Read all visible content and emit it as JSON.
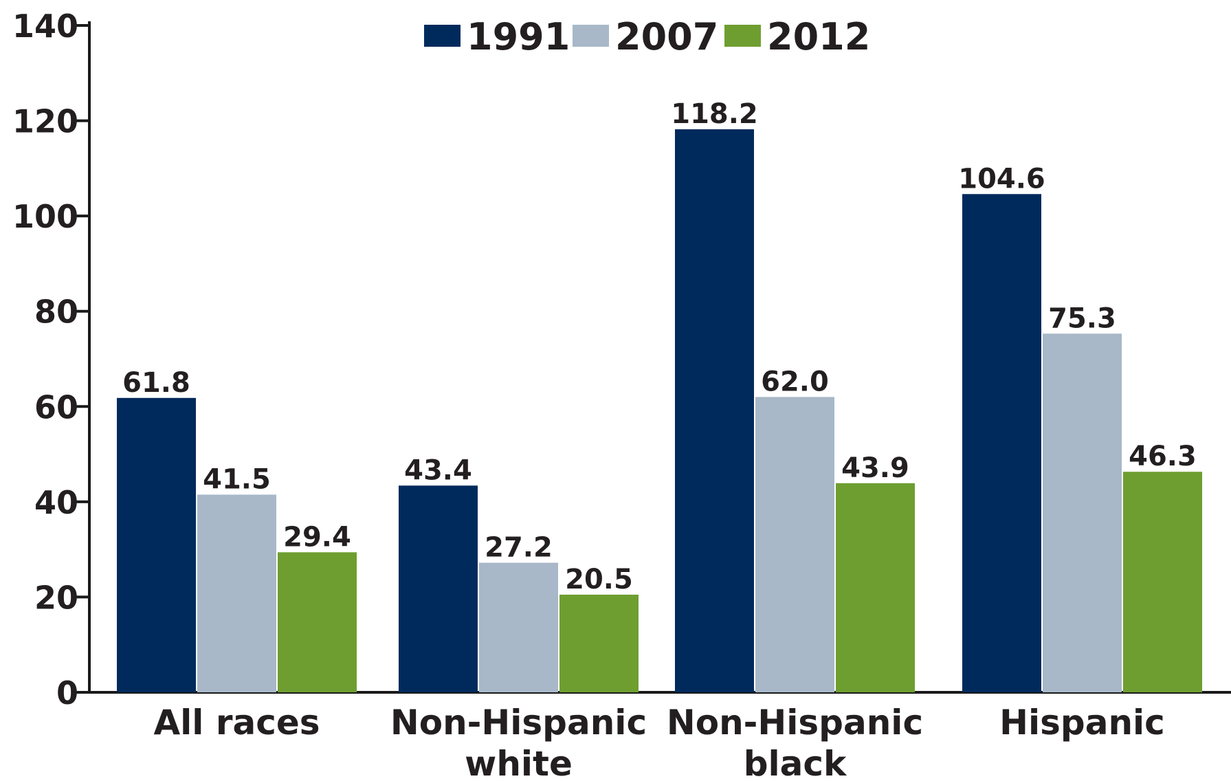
{
  "chart_data": {
    "type": "bar",
    "categories": [
      [
        "All races"
      ],
      [
        "Non-Hispanic",
        "white"
      ],
      [
        "Non-Hispanic",
        "black"
      ],
      [
        "Hispanic"
      ]
    ],
    "series": [
      {
        "name": "1991",
        "color": "#002a5c",
        "values": [
          61.8,
          43.4,
          118.2,
          104.6
        ],
        "labels": [
          "61.8",
          "43.4",
          "118.2",
          "104.6"
        ]
      },
      {
        "name": "2007",
        "color": "#a8b8c8",
        "values": [
          41.5,
          27.2,
          62.0,
          75.3
        ],
        "labels": [
          "41.5",
          "27.2",
          "62.0",
          "75.3"
        ]
      },
      {
        "name": "2012",
        "color": "#6e9e30",
        "values": [
          29.4,
          20.5,
          43.9,
          46.3
        ],
        "labels": [
          "29.4",
          "20.5",
          "43.9",
          "46.3"
        ]
      }
    ],
    "yticks": [
      "0",
      "20",
      "40",
      "60",
      "80",
      "100",
      "120",
      "140"
    ],
    "ylim": [
      0,
      140
    ],
    "legend_position": "top-center",
    "grid": false
  }
}
